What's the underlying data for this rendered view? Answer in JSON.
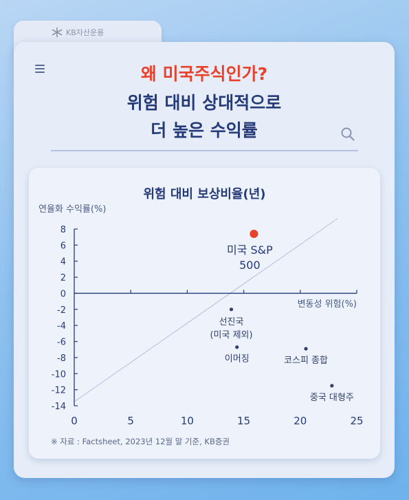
{
  "brand": {
    "name": "KB자산운용",
    "logo_icon": "kb-star-icon"
  },
  "header": {
    "menu_icon": "hamburger-menu-icon",
    "search_icon": "search-icon",
    "headline_red": "왜 미국주식인가?",
    "headline_line2": "위험 대비 상대적으로",
    "headline_line3": "더 높은 수익률"
  },
  "colors": {
    "accent_red": "#e8412c",
    "navy": "#253a78",
    "point": "#33406a"
  },
  "chart_data": {
    "type": "scatter",
    "title": "위험 대비 보상비율(년)",
    "ylabel": "연율화 수익률(%)",
    "xlabel": "변동성 위험(%)",
    "xlim": [
      0,
      25
    ],
    "ylim": [
      -14,
      8
    ],
    "x_ticks": [
      0,
      5,
      10,
      15,
      20,
      25
    ],
    "y_ticks": [
      8,
      6,
      4,
      2,
      0,
      -2,
      -4,
      -6,
      -8,
      -10,
      -12,
      -14
    ],
    "trend_line": {
      "from": [
        0,
        -13.5
      ],
      "to": [
        23.3,
        9.3
      ]
    },
    "points": [
      {
        "x": 15.9,
        "y": 7.4,
        "label_lines": [
          "미국 S&P",
          "500"
        ],
        "highlight": true
      },
      {
        "x": 13.9,
        "y": -2.0,
        "label_lines": [
          "선진국",
          "(미국 제외)"
        ],
        "highlight": false
      },
      {
        "x": 14.4,
        "y": -6.7,
        "label_lines": [
          "이머징"
        ],
        "highlight": false
      },
      {
        "x": 20.5,
        "y": -6.9,
        "label_lines": [
          "코스피 종합"
        ],
        "highlight": false
      },
      {
        "x": 22.8,
        "y": -11.5,
        "label_lines": [
          "중국 대형주"
        ],
        "highlight": false
      }
    ]
  },
  "source": "※ 자료 : Factsheet, 2023년 12월 말 기준, KB증권"
}
